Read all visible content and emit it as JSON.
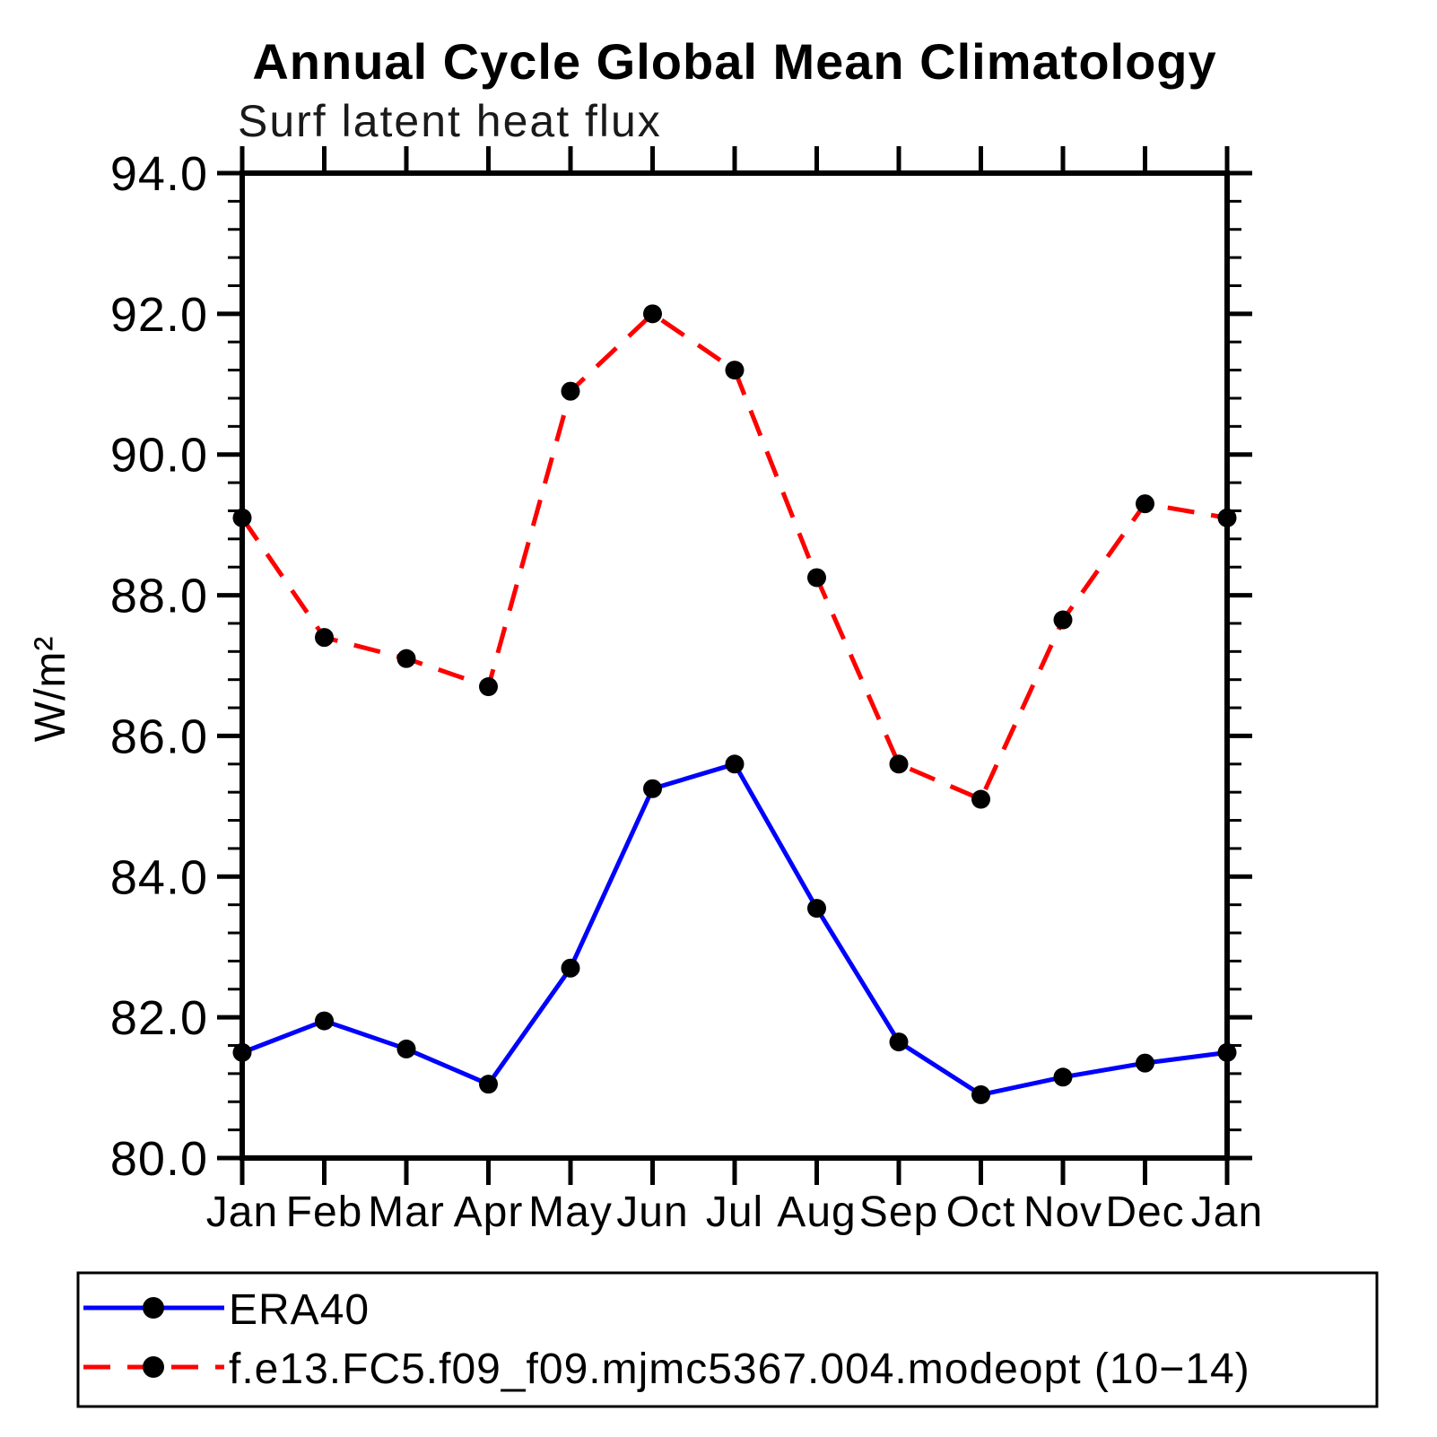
{
  "header": {
    "title": "Annual Cycle Global Mean Climatology",
    "subtitle": "Surf latent heat flux"
  },
  "chart_data": {
    "type": "line",
    "title": "Annual Cycle Global Mean Climatology",
    "subtitle": "Surf latent heat flux",
    "xlabel": "",
    "ylabel": "W/m²",
    "categories": [
      "Jan",
      "Feb",
      "Mar",
      "Apr",
      "May",
      "Jun",
      "Jul",
      "Aug",
      "Sep",
      "Oct",
      "Nov",
      "Dec",
      "Jan"
    ],
    "ylim": [
      80.0,
      94.0
    ],
    "ytick_interval": 2.0,
    "yminor_interval": 0.4,
    "ytick_labels": [
      "80.0",
      "82.0",
      "84.0",
      "86.0",
      "88.0",
      "90.0",
      "92.0",
      "94.0"
    ],
    "grid": false,
    "legend_position": "bottom",
    "series": [
      {
        "name": "ERA40",
        "color": "#0000ff",
        "line_style": "solid",
        "marker": "circle",
        "marker_color": "#000000",
        "values": [
          81.5,
          81.95,
          81.55,
          81.05,
          82.7,
          85.25,
          85.6,
          83.55,
          81.65,
          80.9,
          81.15,
          81.35,
          81.5
        ]
      },
      {
        "name": "f.e13.FC5.f09_f09.mjmc5367.004.modeopt (10−14)",
        "color": "#ff0000",
        "line_style": "dashed",
        "marker": "circle",
        "marker_color": "#000000",
        "values": [
          89.1,
          87.4,
          87.1,
          86.7,
          90.9,
          92.0,
          91.2,
          88.25,
          85.6,
          85.1,
          87.65,
          89.3,
          89.1
        ]
      }
    ]
  }
}
